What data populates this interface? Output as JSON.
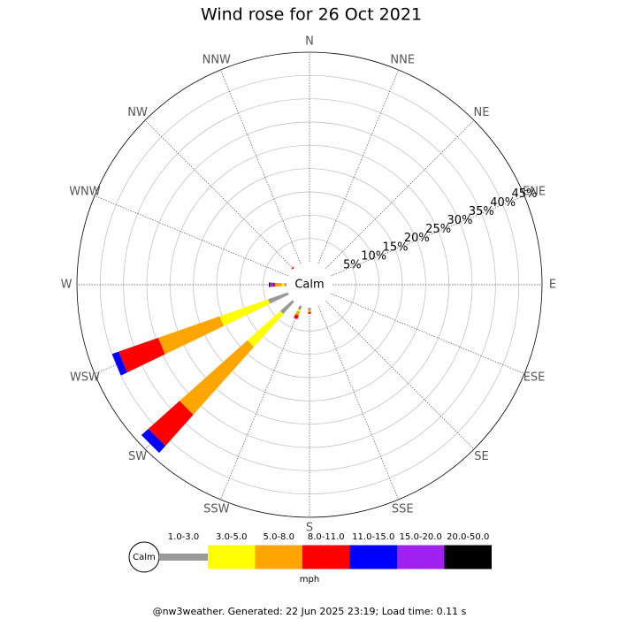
{
  "chart_data": {
    "type": "windrose",
    "title": "Wind rose for 26 Oct 2021",
    "center_label": "Calm",
    "legend_calm_label": "Calm",
    "unit_label": "mph",
    "footer": "@nw3weather.  Generated: 22 Jun 2025 23:19; Load time: 0.11 s",
    "directions": [
      "N",
      "NNE",
      "NE",
      "ENE",
      "E",
      "ESE",
      "SE",
      "SSE",
      "S",
      "SSW",
      "SW",
      "WSW",
      "W",
      "WNW",
      "NW",
      "NNW"
    ],
    "rlim": [
      0,
      45
    ],
    "rticks": [
      {
        "value": 5,
        "label": "5%"
      },
      {
        "value": 10,
        "label": "10%"
      },
      {
        "value": 15,
        "label": "15%"
      },
      {
        "value": 20,
        "label": "20%"
      },
      {
        "value": 25,
        "label": "25%"
      },
      {
        "value": 30,
        "label": "30%"
      },
      {
        "value": 35,
        "label": "35%"
      },
      {
        "value": 40,
        "label": "40%"
      },
      {
        "value": 45,
        "label": "45%"
      }
    ],
    "series": [
      {
        "name": "1.0-3.0",
        "color": "#999999",
        "values": [
          0,
          0,
          0,
          0,
          0,
          0,
          0,
          0,
          0.5,
          0.8,
          3.5,
          4.5,
          0.5,
          0,
          0,
          0
        ]
      },
      {
        "name": "3.0-5.0",
        "color": "#ffff00",
        "values": [
          0,
          0,
          0,
          0,
          0,
          0,
          0,
          0,
          0,
          0.5,
          9.5,
          11,
          0.5,
          0,
          0,
          0
        ]
      },
      {
        "name": "5.0-8.0",
        "color": "#ffa500",
        "values": [
          0,
          0,
          0,
          0,
          0,
          0,
          0,
          0,
          0.5,
          0.8,
          19.5,
          14,
          1.5,
          0,
          0,
          0
        ]
      },
      {
        "name": "8.0-11.0",
        "color": "#ff0000",
        "values": [
          0,
          0,
          0,
          0,
          0,
          0,
          0,
          0,
          0.3,
          0.8,
          9,
          9,
          0.2,
          0,
          0.3,
          0
        ]
      },
      {
        "name": "11.0-15.0",
        "color": "#0000ff",
        "values": [
          0,
          0,
          0,
          0,
          0,
          0,
          0,
          0,
          0,
          0,
          2,
          1.5,
          0.2,
          0,
          0,
          0
        ]
      },
      {
        "name": "15.0-20.0",
        "color": "#a020f0",
        "values": [
          0,
          0,
          0,
          0,
          0,
          0,
          0,
          0,
          0,
          0,
          0,
          0,
          0.7,
          0,
          0,
          0
        ]
      },
      {
        "name": "20.0-50.0",
        "color": "#000000",
        "values": [
          0,
          0,
          0,
          0,
          0,
          0,
          0,
          0,
          0,
          0,
          0,
          0,
          0.2,
          0,
          0,
          0
        ]
      }
    ]
  }
}
